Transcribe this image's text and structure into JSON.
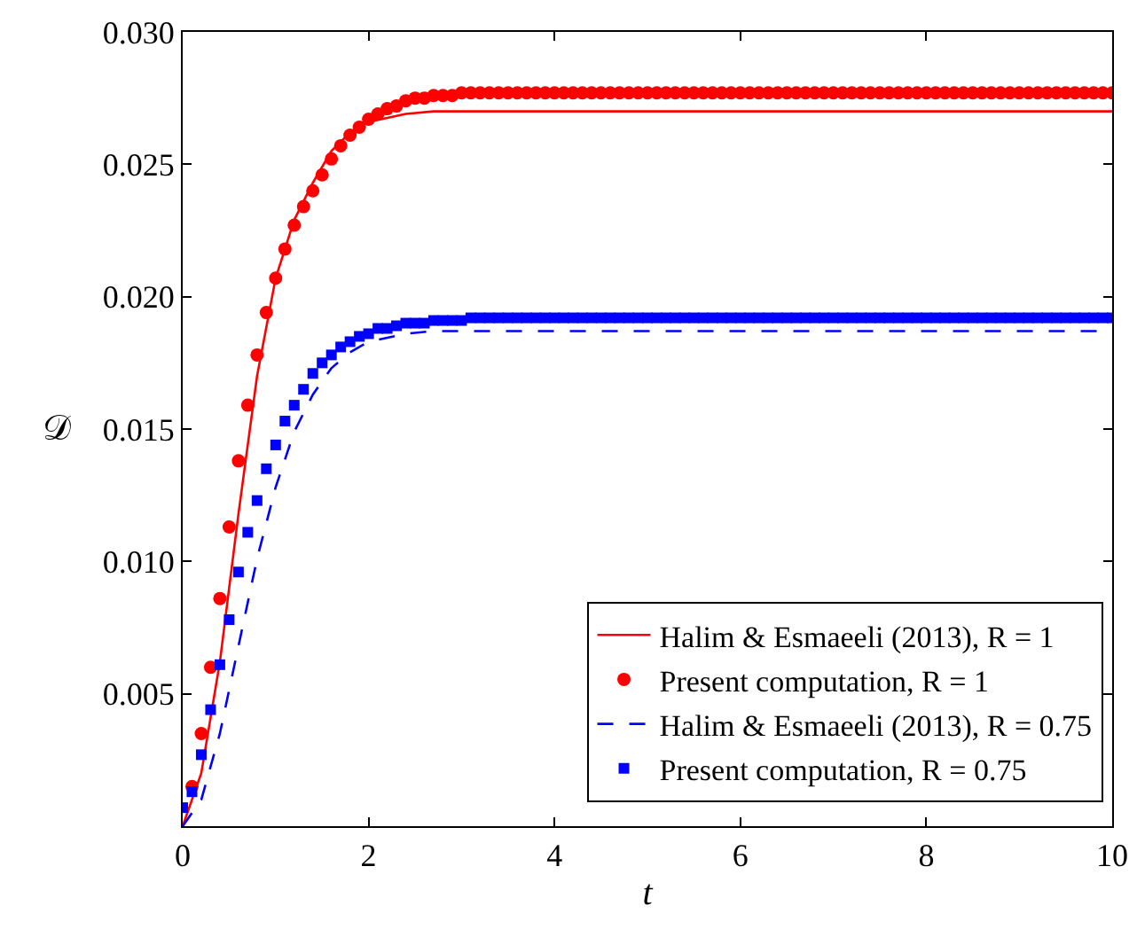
{
  "chart_data": {
    "type": "line",
    "xlabel": "t",
    "ylabel": "𝒟",
    "xlim": [
      0,
      10
    ],
    "xticks": [
      0,
      2,
      4,
      6,
      8,
      10
    ],
    "ylim": [
      0,
      0.03
    ],
    "yticks": [
      {
        "value": 0,
        "label": null
      },
      {
        "value": 0.005,
        "label": "0.005"
      },
      {
        "value": 0.01,
        "label": "0.010"
      },
      {
        "value": 0.015,
        "label": "0.015"
      },
      {
        "value": 0.02,
        "label": "0.020"
      },
      {
        "value": 0.025,
        "label": "0.025"
      },
      {
        "value": 0.03,
        "label": "0.030"
      }
    ],
    "legend": "bottom right",
    "series": [
      {
        "name": "Halim & Esmaeeli (2013), R = 1",
        "type": "line",
        "color": "#ff0000",
        "line_style": "solid",
        "marker": "none",
        "x": [
          0,
          0.2,
          0.4,
          0.6,
          0.8,
          1.0,
          1.2,
          1.4,
          1.6,
          1.8,
          2.0,
          2.4,
          2.7,
          10
        ],
        "values": [
          0,
          0.002,
          0.0062,
          0.0118,
          0.017,
          0.0207,
          0.0229,
          0.0243,
          0.0255,
          0.0262,
          0.0266,
          0.0269,
          0.027,
          0.027
        ]
      },
      {
        "name": "Present computation, R = 1",
        "type": "scatter",
        "color": "#ff0000",
        "marker": "circle",
        "x": [
          0.1,
          0.2,
          0.3,
          0.4,
          0.5,
          0.6,
          0.7,
          0.8,
          0.9,
          1.0,
          1.1,
          1.2,
          1.3,
          1.4,
          1.5,
          1.6,
          1.7,
          1.8,
          1.9,
          2.0,
          2.1,
          2.2,
          2.3,
          2.4,
          2.5,
          2.6,
          2.7,
          2.8,
          2.9,
          3.0,
          3.1,
          3.2,
          3.3,
          3.4,
          3.5,
          3.6,
          3.7,
          3.8,
          3.9,
          4.0,
          4.1,
          4.2,
          4.3,
          4.4,
          4.5,
          4.6,
          4.7,
          4.8,
          4.9,
          5.0,
          5.1,
          5.2,
          5.3,
          5.4,
          5.5,
          5.6,
          5.7,
          5.8,
          5.9,
          6.0,
          6.1,
          6.2,
          6.3,
          6.4,
          6.5,
          6.6,
          6.7,
          6.8,
          6.9,
          7.0,
          7.1,
          7.2,
          7.3,
          7.4,
          7.5,
          7.6,
          7.7,
          7.8,
          7.9,
          8.0,
          8.1,
          8.2,
          8.3,
          8.4,
          8.5,
          8.6,
          8.7,
          8.8,
          8.9,
          9.0,
          9.1,
          9.2,
          9.3,
          9.4,
          9.5,
          9.6,
          9.7,
          9.8,
          9.9,
          10.0
        ],
        "values": [
          0.0015,
          0.0035,
          0.006,
          0.0086,
          0.0113,
          0.0138,
          0.0159,
          0.0178,
          0.0194,
          0.0207,
          0.0218,
          0.0227,
          0.0234,
          0.024,
          0.0246,
          0.0252,
          0.0257,
          0.0261,
          0.0264,
          0.0267,
          0.0269,
          0.0271,
          0.0272,
          0.0274,
          0.0275,
          0.0275,
          0.0276,
          0.0276,
          0.0276,
          0.0277,
          0.0277,
          0.0277,
          0.0277,
          0.0277,
          0.0277,
          0.0277,
          0.0277,
          0.0277,
          0.0277,
          0.0277,
          0.0277,
          0.0277,
          0.0277,
          0.0277,
          0.0277,
          0.0277,
          0.0277,
          0.0277,
          0.0277,
          0.0277,
          0.0277,
          0.0277,
          0.0277,
          0.0277,
          0.0277,
          0.0277,
          0.0277,
          0.0277,
          0.0277,
          0.0277,
          0.0277,
          0.0277,
          0.0277,
          0.0277,
          0.0277,
          0.0277,
          0.0277,
          0.0277,
          0.0277,
          0.0277,
          0.0277,
          0.0277,
          0.0277,
          0.0277,
          0.0277,
          0.0277,
          0.0277,
          0.0277,
          0.0277,
          0.0277,
          0.0277,
          0.0277,
          0.0277,
          0.0277,
          0.0277,
          0.0277,
          0.0277,
          0.0277,
          0.0277,
          0.0277,
          0.0277,
          0.0277,
          0.0277,
          0.0277,
          0.0277,
          0.0277,
          0.0277,
          0.0277,
          0.0277,
          0.0277
        ]
      },
      {
        "name": "Halim & Esmaeeli (2013), R = 0.75",
        "type": "line",
        "color": "#0000ff",
        "line_style": "dashed",
        "marker": "none",
        "x": [
          0,
          0.2,
          0.4,
          0.6,
          0.8,
          1.0,
          1.2,
          1.4,
          1.6,
          1.8,
          2.0,
          2.4,
          2.7,
          10
        ],
        "values": [
          0,
          0.001,
          0.0035,
          0.0068,
          0.0101,
          0.0128,
          0.0149,
          0.0163,
          0.0173,
          0.0179,
          0.0183,
          0.0186,
          0.0187,
          0.0187
        ]
      },
      {
        "name": "Present computation, R = 0.75",
        "type": "scatter",
        "color": "#0000ff",
        "marker": "square",
        "x": [
          0,
          0.1,
          0.2,
          0.3,
          0.4,
          0.5,
          0.6,
          0.7,
          0.8,
          0.9,
          1.0,
          1.1,
          1.2,
          1.3,
          1.4,
          1.5,
          1.6,
          1.7,
          1.8,
          1.9,
          2.0,
          2.1,
          2.2,
          2.3,
          2.4,
          2.5,
          2.6,
          2.7,
          2.8,
          2.9,
          3.0,
          3.1,
          3.2,
          3.3,
          3.4,
          3.5,
          3.6,
          3.7,
          3.8,
          3.9,
          4.0,
          4.1,
          4.2,
          4.3,
          4.4,
          4.5,
          4.6,
          4.7,
          4.8,
          4.9,
          5.0,
          5.1,
          5.2,
          5.3,
          5.4,
          5.5,
          5.6,
          5.7,
          5.8,
          5.9,
          6.0,
          6.1,
          6.2,
          6.3,
          6.4,
          6.5,
          6.6,
          6.7,
          6.8,
          6.9,
          7.0,
          7.1,
          7.2,
          7.3,
          7.4,
          7.5,
          7.6,
          7.7,
          7.8,
          7.9,
          8.0,
          8.1,
          8.2,
          8.3,
          8.4,
          8.5,
          8.6,
          8.7,
          8.8,
          8.9,
          9.0,
          9.1,
          9.2,
          9.3,
          9.4,
          9.5,
          9.6,
          9.7,
          9.8,
          9.9,
          10.0
        ],
        "values": [
          0.0007,
          0.0013,
          0.0027,
          0.0044,
          0.0061,
          0.0078,
          0.0096,
          0.0111,
          0.0123,
          0.0135,
          0.0144,
          0.0153,
          0.0159,
          0.0165,
          0.0171,
          0.0175,
          0.0178,
          0.0181,
          0.0183,
          0.0185,
          0.0186,
          0.0188,
          0.0188,
          0.0189,
          0.019,
          0.019,
          0.019,
          0.0191,
          0.0191,
          0.0191,
          0.0191,
          0.0192,
          0.0192,
          0.0192,
          0.0192,
          0.0192,
          0.0192,
          0.0192,
          0.0192,
          0.0192,
          0.0192,
          0.0192,
          0.0192,
          0.0192,
          0.0192,
          0.0192,
          0.0192,
          0.0192,
          0.0192,
          0.0192,
          0.0192,
          0.0192,
          0.0192,
          0.0192,
          0.0192,
          0.0192,
          0.0192,
          0.0192,
          0.0192,
          0.0192,
          0.0192,
          0.0192,
          0.0192,
          0.0192,
          0.0192,
          0.0192,
          0.0192,
          0.0192,
          0.0192,
          0.0192,
          0.0192,
          0.0192,
          0.0192,
          0.0192,
          0.0192,
          0.0192,
          0.0192,
          0.0192,
          0.0192,
          0.0192,
          0.0192,
          0.0192,
          0.0192,
          0.0192,
          0.0192,
          0.0192,
          0.0192,
          0.0192,
          0.0192,
          0.0192,
          0.0192,
          0.0192,
          0.0192,
          0.0192,
          0.0192,
          0.0192,
          0.0192,
          0.0192,
          0.0192,
          0.0192,
          0.0192
        ]
      }
    ]
  }
}
